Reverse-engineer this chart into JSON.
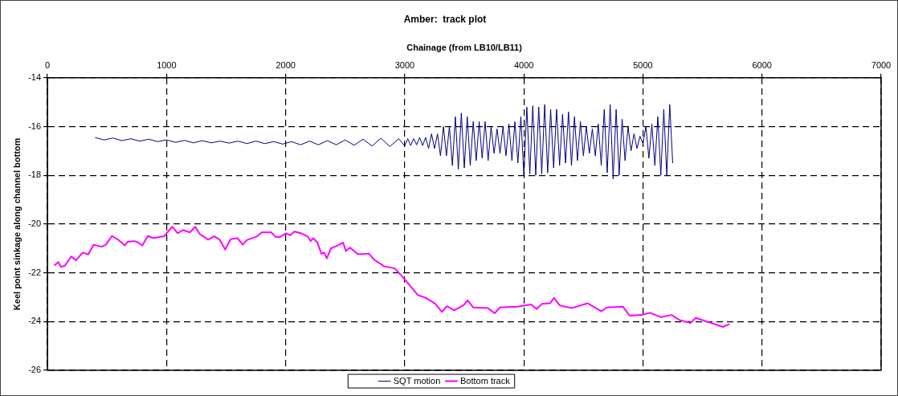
{
  "chart_data": {
    "type": "line",
    "title": "Amber:  track plot",
    "xlabel": "Chainage (from LB10/LB11)",
    "ylabel": "Keel point sinkage along channel bottom",
    "xlim": [
      0,
      7000
    ],
    "xticks": [
      0,
      1000,
      2000,
      3000,
      4000,
      5000,
      6000,
      7000
    ],
    "ylim": [
      -26,
      -14
    ],
    "yticks": [
      -26,
      -24,
      -22,
      -20,
      -18,
      -16,
      -14
    ],
    "grid": true,
    "line_style": "solid",
    "legend": "bottom",
    "marker": "none",
    "series": [
      {
        "name": "SQT motion",
        "color": "#000080",
        "x": [
          400,
          475,
          550,
          625,
          700,
          775,
          850,
          925,
          1000,
          1075,
          1150,
          1225,
          1300,
          1375,
          1450,
          1525,
          1600,
          1675,
          1750,
          1825,
          1900,
          1975,
          2050,
          2125,
          2200,
          2275,
          2350,
          2425,
          2500,
          2575,
          2650,
          2725,
          2800,
          2875,
          2950,
          3000,
          3025,
          3050,
          3075,
          3100,
          3125,
          3150,
          3175,
          3200,
          3225,
          3250,
          3275,
          3300,
          3325,
          3350,
          3375,
          3400,
          3425,
          3450,
          3475,
          3500,
          3525,
          3550,
          3575,
          3600,
          3625,
          3650,
          3675,
          3700,
          3725,
          3750,
          3775,
          3800,
          3825,
          3850,
          3875,
          3900,
          3925,
          3950,
          3975,
          4000,
          4025,
          4050,
          4075,
          4100,
          4125,
          4150,
          4175,
          4200,
          4225,
          4250,
          4275,
          4300,
          4325,
          4350,
          4375,
          4400,
          4425,
          4450,
          4475,
          4500,
          4525,
          4550,
          4575,
          4600,
          4625,
          4650,
          4675,
          4700,
          4725,
          4750,
          4775,
          4800,
          4825,
          4850,
          4875,
          4900,
          4925,
          4950,
          4975,
          5000,
          5025,
          5050,
          5075,
          5100,
          5125,
          5150,
          5175,
          5200,
          5225,
          5250
        ],
        "values": [
          -16.45,
          -16.55,
          -16.47,
          -16.58,
          -16.5,
          -16.6,
          -16.52,
          -16.62,
          -16.55,
          -16.65,
          -16.57,
          -16.67,
          -16.58,
          -16.67,
          -16.6,
          -16.68,
          -16.6,
          -16.7,
          -16.6,
          -16.7,
          -16.62,
          -16.72,
          -16.62,
          -16.75,
          -16.6,
          -16.75,
          -16.58,
          -16.75,
          -16.55,
          -16.77,
          -16.52,
          -16.8,
          -16.48,
          -16.82,
          -16.5,
          -16.8,
          -16.5,
          -16.78,
          -16.5,
          -16.75,
          -16.45,
          -16.78,
          -16.45,
          -16.9,
          -16.3,
          -16.9,
          -16.3,
          -17.2,
          -16.0,
          -17.2,
          -16.0,
          -17.6,
          -15.6,
          -17.75,
          -15.45,
          -17.7,
          -15.6,
          -17.6,
          -15.8,
          -17.4,
          -15.8,
          -17.3,
          -15.8,
          -17.4,
          -16.0,
          -17.1,
          -16.1,
          -17.1,
          -16.0,
          -17.2,
          -15.9,
          -17.4,
          -15.8,
          -17.5,
          -15.6,
          -18.0,
          -15.2,
          -17.95,
          -15.15,
          -18.0,
          -15.2,
          -17.95,
          -15.1,
          -17.9,
          -15.3,
          -17.7,
          -15.3,
          -17.6,
          -15.5,
          -17.5,
          -15.4,
          -17.6,
          -15.6,
          -17.4,
          -15.8,
          -17.2,
          -16.0,
          -17.1,
          -16.1,
          -17.2,
          -15.9,
          -17.6,
          -15.3,
          -17.9,
          -15.1,
          -18.15,
          -15.3,
          -18.0,
          -15.7,
          -17.4,
          -16.0,
          -17.0,
          -16.3,
          -16.9,
          -16.4,
          -16.7,
          -16.0,
          -17.3,
          -15.9,
          -17.6,
          -15.6,
          -18.0,
          -15.3,
          -18.0,
          -15.1,
          -17.5
        ]
      },
      {
        "name": "Bottom track",
        "color": "#ff00ff",
        "x": [
          57,
          91,
          114,
          148,
          200,
          239,
          296,
          342,
          387,
          456,
          490,
          542,
          592,
          649,
          672,
          729,
          763,
          797,
          843,
          888,
          979,
          1048,
          1093,
          1139,
          1196,
          1241,
          1276,
          1349,
          1401,
          1446,
          1492,
          1538,
          1595,
          1640,
          1674,
          1754,
          1800,
          1879,
          1913,
          1948,
          2005,
          2039,
          2073,
          2130,
          2187,
          2210,
          2232,
          2266,
          2301,
          2323,
          2346,
          2380,
          2437,
          2483,
          2506,
          2540,
          2605,
          2651,
          2699,
          2745,
          2825,
          2916,
          2995,
          3109,
          3177,
          3256,
          3313,
          3354,
          3415,
          3494,
          3528,
          3574,
          3698,
          3755,
          3800,
          3948,
          4061,
          4107,
          4152,
          4220,
          4254,
          4299,
          4401,
          4537,
          4651,
          4696,
          4832,
          4889,
          4991,
          5059,
          5150,
          5240,
          5308,
          5399,
          5444,
          5535,
          5671,
          5728
        ],
        "values": [
          -21.7,
          -21.56,
          -21.76,
          -21.7,
          -21.33,
          -21.49,
          -21.17,
          -21.25,
          -20.85,
          -20.93,
          -20.85,
          -20.49,
          -20.64,
          -20.88,
          -20.73,
          -20.7,
          -20.76,
          -20.88,
          -20.49,
          -20.58,
          -20.5,
          -20.11,
          -20.38,
          -20.25,
          -20.34,
          -20.11,
          -20.4,
          -20.64,
          -20.5,
          -20.64,
          -21.05,
          -20.62,
          -20.58,
          -20.85,
          -20.66,
          -20.52,
          -20.34,
          -20.34,
          -20.52,
          -20.54,
          -20.38,
          -20.46,
          -20.31,
          -20.38,
          -20.52,
          -20.7,
          -20.58,
          -20.76,
          -21.23,
          -21.17,
          -21.41,
          -21.0,
          -20.88,
          -20.76,
          -21.11,
          -20.97,
          -21.23,
          -21.23,
          -21.21,
          -21.47,
          -21.73,
          -21.82,
          -22.24,
          -22.91,
          -23.03,
          -23.27,
          -23.61,
          -23.37,
          -23.54,
          -23.33,
          -23.13,
          -23.42,
          -23.45,
          -23.66,
          -23.42,
          -23.39,
          -23.3,
          -23.49,
          -23.27,
          -23.25,
          -23.03,
          -23.33,
          -23.45,
          -23.25,
          -23.58,
          -23.42,
          -23.39,
          -23.76,
          -23.73,
          -23.64,
          -23.82,
          -23.73,
          -23.94,
          -24.06,
          -23.85,
          -24.0,
          -24.22,
          -24.1
        ]
      }
    ]
  }
}
